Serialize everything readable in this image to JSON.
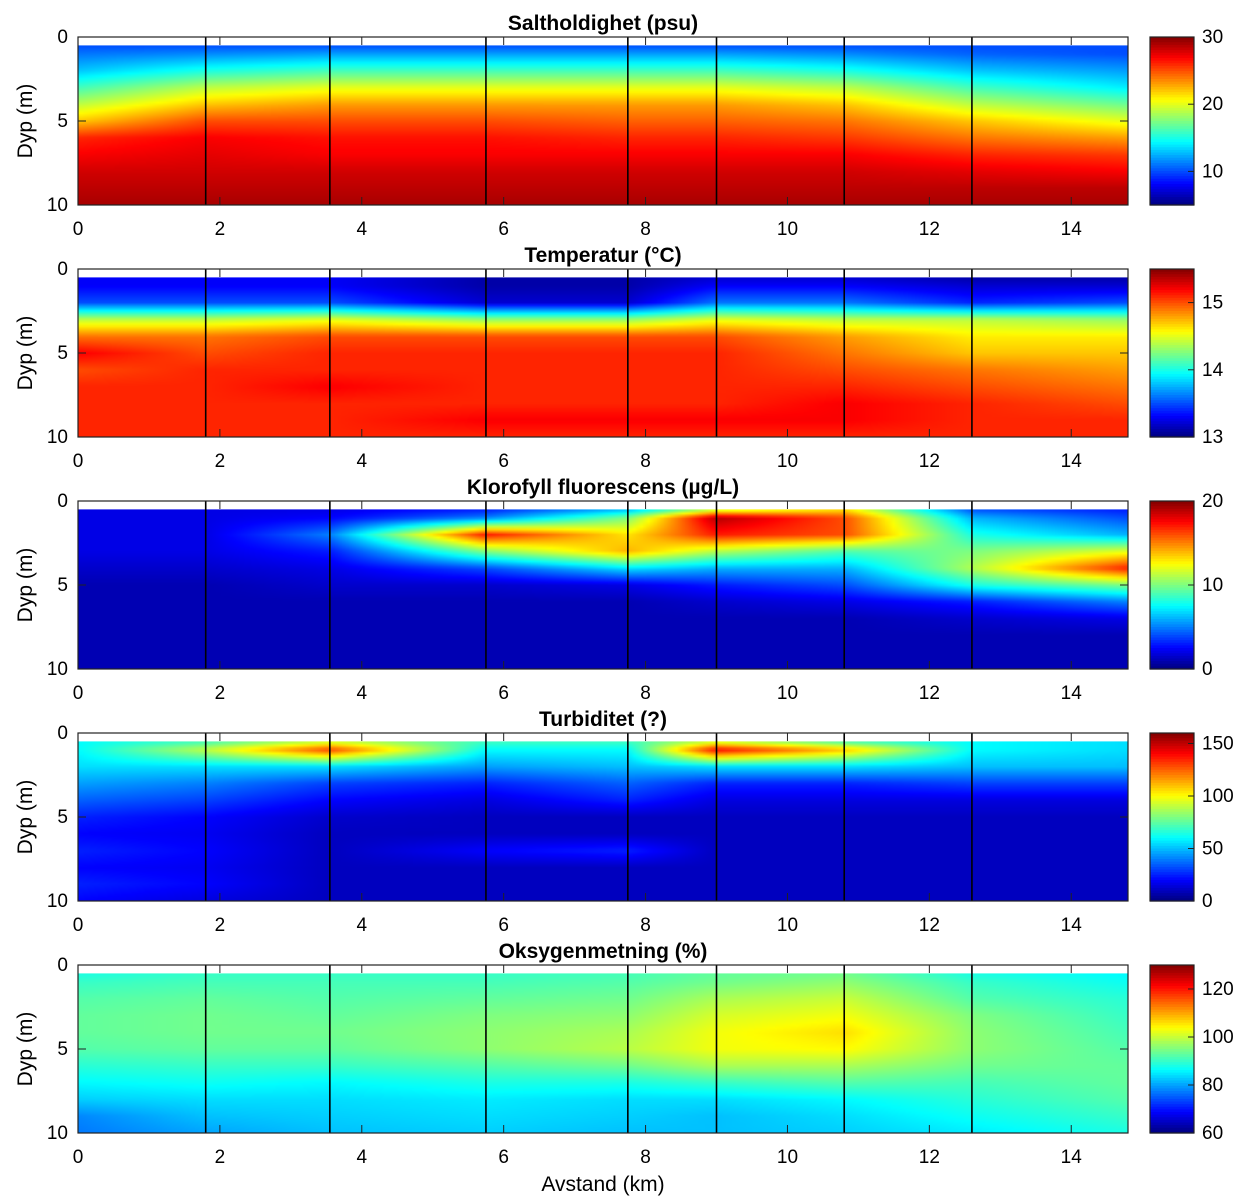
{
  "chart_data": [
    {
      "type": "heatmap",
      "title": "Saltholdighet (psu)",
      "ylabel": "Dyp (m)",
      "xlim": [
        0,
        14.8
      ],
      "ylim": [
        0,
        10
      ],
      "x_ticks": [
        0,
        2,
        4,
        6,
        8,
        10,
        12,
        14
      ],
      "y_ticks": [
        0,
        5,
        10
      ],
      "y_reversed": true,
      "clim": [
        5,
        30
      ],
      "colorbar_ticks": [
        10,
        20,
        30
      ],
      "colormap": "jet",
      "stations_km": [
        1.8,
        3.55,
        5.75,
        7.75,
        9.0,
        10.8,
        12.6
      ],
      "data_top_depth": 0.5,
      "x": [
        0,
        1.8,
        3.55,
        5.75,
        7.75,
        9.0,
        10.8,
        12.6,
        14.8
      ],
      "depth": [
        0.5,
        1,
        2,
        3,
        4,
        5,
        6,
        7,
        8,
        9,
        10
      ],
      "values": [
        [
          10,
          10,
          10,
          10,
          10,
          10,
          10,
          10,
          10
        ],
        [
          11,
          11.5,
          12,
          12,
          12,
          12,
          11.5,
          10.5,
          10
        ],
        [
          13,
          15,
          16,
          16,
          16,
          16,
          15,
          13,
          12
        ],
        [
          16,
          19,
          20,
          20,
          20,
          20,
          19,
          16,
          14
        ],
        [
          19,
          22,
          23,
          23,
          23,
          23,
          22,
          19,
          17
        ],
        [
          22,
          25,
          25,
          25,
          24.5,
          24.5,
          24,
          22,
          20
        ],
        [
          26,
          27,
          26.5,
          26.5,
          26,
          26,
          25.5,
          24,
          23
        ],
        [
          27,
          27.5,
          27,
          27,
          27,
          27,
          27,
          26,
          25.5
        ],
        [
          28,
          28,
          28,
          28,
          28,
          28,
          28,
          27.5,
          27
        ],
        [
          28.5,
          28.5,
          28.5,
          28.5,
          28.5,
          28.5,
          28.5,
          28.5,
          28.5
        ],
        [
          29,
          29,
          29,
          29,
          29,
          29,
          29,
          29,
          29
        ]
      ]
    },
    {
      "type": "heatmap",
      "title": "Temperatur (°C)",
      "ylabel": "Dyp (m)",
      "xlim": [
        0,
        14.8
      ],
      "ylim": [
        0,
        10
      ],
      "x_ticks": [
        0,
        2,
        4,
        6,
        8,
        10,
        12,
        14
      ],
      "y_ticks": [
        0,
        5,
        10
      ],
      "y_reversed": true,
      "clim": [
        13,
        15.5
      ],
      "colorbar_ticks": [
        13,
        14,
        15
      ],
      "colormap": "jet",
      "stations_km": [
        1.8,
        3.55,
        5.75,
        7.75,
        9.0,
        10.8,
        12.6
      ],
      "data_top_depth": 0.5,
      "x": [
        0,
        1.8,
        3.55,
        5.75,
        7.75,
        9.0,
        10.8,
        12.6,
        14.8
      ],
      "depth": [
        0.5,
        1,
        2,
        3,
        4,
        5,
        6,
        7,
        8,
        9,
        10
      ],
      "values": [
        [
          13.3,
          13.3,
          13.3,
          13.1,
          13.1,
          13.2,
          13.2,
          13.1,
          13.1
        ],
        [
          13.3,
          13.3,
          13.3,
          13.1,
          13.1,
          13.3,
          13.3,
          13.2,
          13.2
        ],
        [
          13.5,
          13.5,
          13.5,
          13.2,
          13.2,
          13.6,
          13.6,
          13.4,
          13.5
        ],
        [
          14.4,
          14.4,
          14.5,
          14.3,
          14.3,
          14.5,
          14.4,
          14.4,
          14.3
        ],
        [
          14.9,
          14.9,
          15.0,
          15.0,
          15.0,
          15.0,
          14.8,
          14.6,
          14.6
        ],
        [
          15.2,
          15.0,
          15.1,
          15.1,
          15.1,
          15.1,
          14.9,
          14.7,
          14.7
        ],
        [
          15.0,
          15.1,
          15.1,
          15.1,
          15.1,
          15.1,
          15.0,
          14.9,
          14.8
        ],
        [
          15.1,
          15.1,
          15.2,
          15.1,
          15.1,
          15.1,
          15.1,
          15.0,
          14.9
        ],
        [
          15.1,
          15.1,
          15.1,
          15.1,
          15.1,
          15.1,
          15.2,
          15.1,
          15.0
        ],
        [
          15.1,
          15.1,
          15.1,
          15.2,
          15.2,
          15.2,
          15.2,
          15.1,
          15.1
        ],
        [
          15.1,
          15.1,
          15.1,
          15.1,
          15.1,
          15.1,
          15.1,
          15.1,
          15.1
        ]
      ]
    },
    {
      "type": "heatmap",
      "title": "Klorofyll fluorescens (µg/L)",
      "ylabel": "Dyp (m)",
      "xlim": [
        0,
        14.8
      ],
      "ylim": [
        0,
        10
      ],
      "x_ticks": [
        0,
        2,
        4,
        6,
        8,
        10,
        12,
        14
      ],
      "y_ticks": [
        0,
        5,
        10
      ],
      "y_reversed": true,
      "clim": [
        0,
        20
      ],
      "colorbar_ticks": [
        0,
        10,
        20
      ],
      "colormap": "jet",
      "stations_km": [
        1.8,
        3.55,
        5.75,
        7.75,
        9.0,
        10.8,
        12.6
      ],
      "data_top_depth": 0.5,
      "x": [
        0,
        1.8,
        3.55,
        5.75,
        7.75,
        9.0,
        10.8,
        12.6,
        14.8
      ],
      "depth": [
        0.5,
        1,
        2,
        3,
        4,
        5,
        6,
        7,
        8,
        9,
        10
      ],
      "values": [
        [
          2,
          2,
          2,
          3,
          6,
          11,
          13,
          4,
          3
        ],
        [
          2,
          2,
          2.5,
          5,
          10,
          19,
          16,
          6,
          4
        ],
        [
          2,
          2,
          5,
          17,
          13,
          17,
          16,
          8,
          6
        ],
        [
          2,
          2,
          3,
          10,
          14,
          11,
          9,
          10,
          12
        ],
        [
          1.5,
          1.5,
          2,
          4,
          7,
          6,
          6,
          11,
          17
        ],
        [
          1,
          1,
          1.5,
          1.5,
          2,
          3,
          4,
          8,
          10
        ],
        [
          1,
          1,
          1,
          1,
          1,
          1.5,
          2,
          3,
          5
        ],
        [
          1,
          1,
          1,
          1,
          1,
          1,
          1,
          1.5,
          2
        ],
        [
          1,
          1,
          1,
          1,
          1,
          1,
          1,
          1,
          1
        ],
        [
          1,
          1,
          1,
          1,
          1,
          1,
          1,
          1,
          1
        ],
        [
          1,
          1,
          1,
          1,
          1,
          1,
          1,
          1,
          1
        ]
      ]
    },
    {
      "type": "heatmap",
      "title": "Turbiditet (?)",
      "ylabel": "Dyp (m)",
      "xlim": [
        0,
        14.8
      ],
      "ylim": [
        0,
        10
      ],
      "x_ticks": [
        0,
        2,
        4,
        6,
        8,
        10,
        12,
        14
      ],
      "y_ticks": [
        0,
        5,
        10
      ],
      "y_reversed": true,
      "clim": [
        0,
        160
      ],
      "colorbar_ticks": [
        0,
        50,
        100,
        150
      ],
      "colormap": "jet",
      "stations_km": [
        1.8,
        3.55,
        5.75,
        7.75,
        9.0,
        10.8,
        12.6
      ],
      "data_top_depth": 0.5,
      "x": [
        0,
        1.8,
        3.55,
        5.75,
        7.75,
        9.0,
        10.8,
        12.6,
        14.8
      ],
      "depth": [
        0.5,
        1,
        2,
        3,
        4,
        5,
        6,
        7,
        8,
        9,
        10
      ],
      "values": [
        [
          60,
          70,
          90,
          70,
          70,
          90,
          70,
          60,
          55
        ],
        [
          60,
          90,
          130,
          60,
          60,
          140,
          110,
          60,
          55
        ],
        [
          55,
          55,
          55,
          45,
          50,
          55,
          55,
          50,
          50
        ],
        [
          45,
          40,
          30,
          25,
          35,
          25,
          25,
          30,
          30
        ],
        [
          35,
          30,
          20,
          15,
          25,
          15,
          15,
          15,
          15
        ],
        [
          25,
          20,
          12,
          10,
          10,
          10,
          10,
          10,
          10
        ],
        [
          20,
          18,
          10,
          10,
          10,
          10,
          10,
          10,
          10
        ],
        [
          25,
          20,
          10,
          20,
          25,
          10,
          10,
          10,
          10
        ],
        [
          20,
          18,
          10,
          10,
          10,
          10,
          10,
          10,
          10
        ],
        [
          25,
          20,
          10,
          10,
          10,
          10,
          10,
          10,
          10
        ],
        [
          20,
          15,
          10,
          10,
          10,
          10,
          10,
          10,
          10
        ]
      ]
    },
    {
      "type": "heatmap",
      "title": "Oksygenmetning (%)",
      "ylabel": "Dyp (m)",
      "xlabel": "Avstand (km)",
      "xlim": [
        0,
        14.8
      ],
      "ylim": [
        0,
        10
      ],
      "x_ticks": [
        0,
        2,
        4,
        6,
        8,
        10,
        12,
        14
      ],
      "y_ticks": [
        0,
        5,
        10
      ],
      "y_reversed": true,
      "clim": [
        60,
        130
      ],
      "colorbar_ticks": [
        60,
        80,
        100,
        120
      ],
      "colormap": "jet",
      "stations_km": [
        1.8,
        3.55,
        5.75,
        7.75,
        9.0,
        10.8,
        12.6
      ],
      "data_top_depth": 0.5,
      "x": [
        0,
        1.8,
        3.55,
        5.75,
        7.75,
        9.0,
        10.8,
        12.6,
        14.8
      ],
      "depth": [
        0.5,
        1,
        2,
        3,
        4,
        5,
        6,
        7,
        8,
        9,
        10
      ],
      "values": [
        [
          88,
          90,
          90,
          90,
          91,
          93,
          94,
          88,
          86
        ],
        [
          90,
          91,
          91,
          91,
          92,
          94,
          96,
          90,
          87
        ],
        [
          92,
          93,
          92,
          93,
          94,
          98,
          100,
          92,
          89
        ],
        [
          93,
          94,
          93,
          95,
          96,
          101,
          103,
          95,
          90
        ],
        [
          93,
          94,
          94,
          96,
          98,
          103,
          106,
          96,
          91
        ],
        [
          92,
          93,
          93,
          96,
          99,
          103,
          104,
          96,
          92
        ],
        [
          89,
          90,
          90,
          92,
          94,
          98,
          98,
          94,
          93
        ],
        [
          86,
          87,
          86,
          88,
          88,
          90,
          92,
          91,
          93
        ],
        [
          83,
          84,
          84,
          85,
          84,
          84,
          86,
          89,
          92
        ],
        [
          78,
          82,
          83,
          84,
          83,
          82,
          84,
          87,
          90
        ],
        [
          77,
          80,
          82,
          83,
          82,
          82,
          83,
          85,
          88
        ]
      ]
    }
  ]
}
